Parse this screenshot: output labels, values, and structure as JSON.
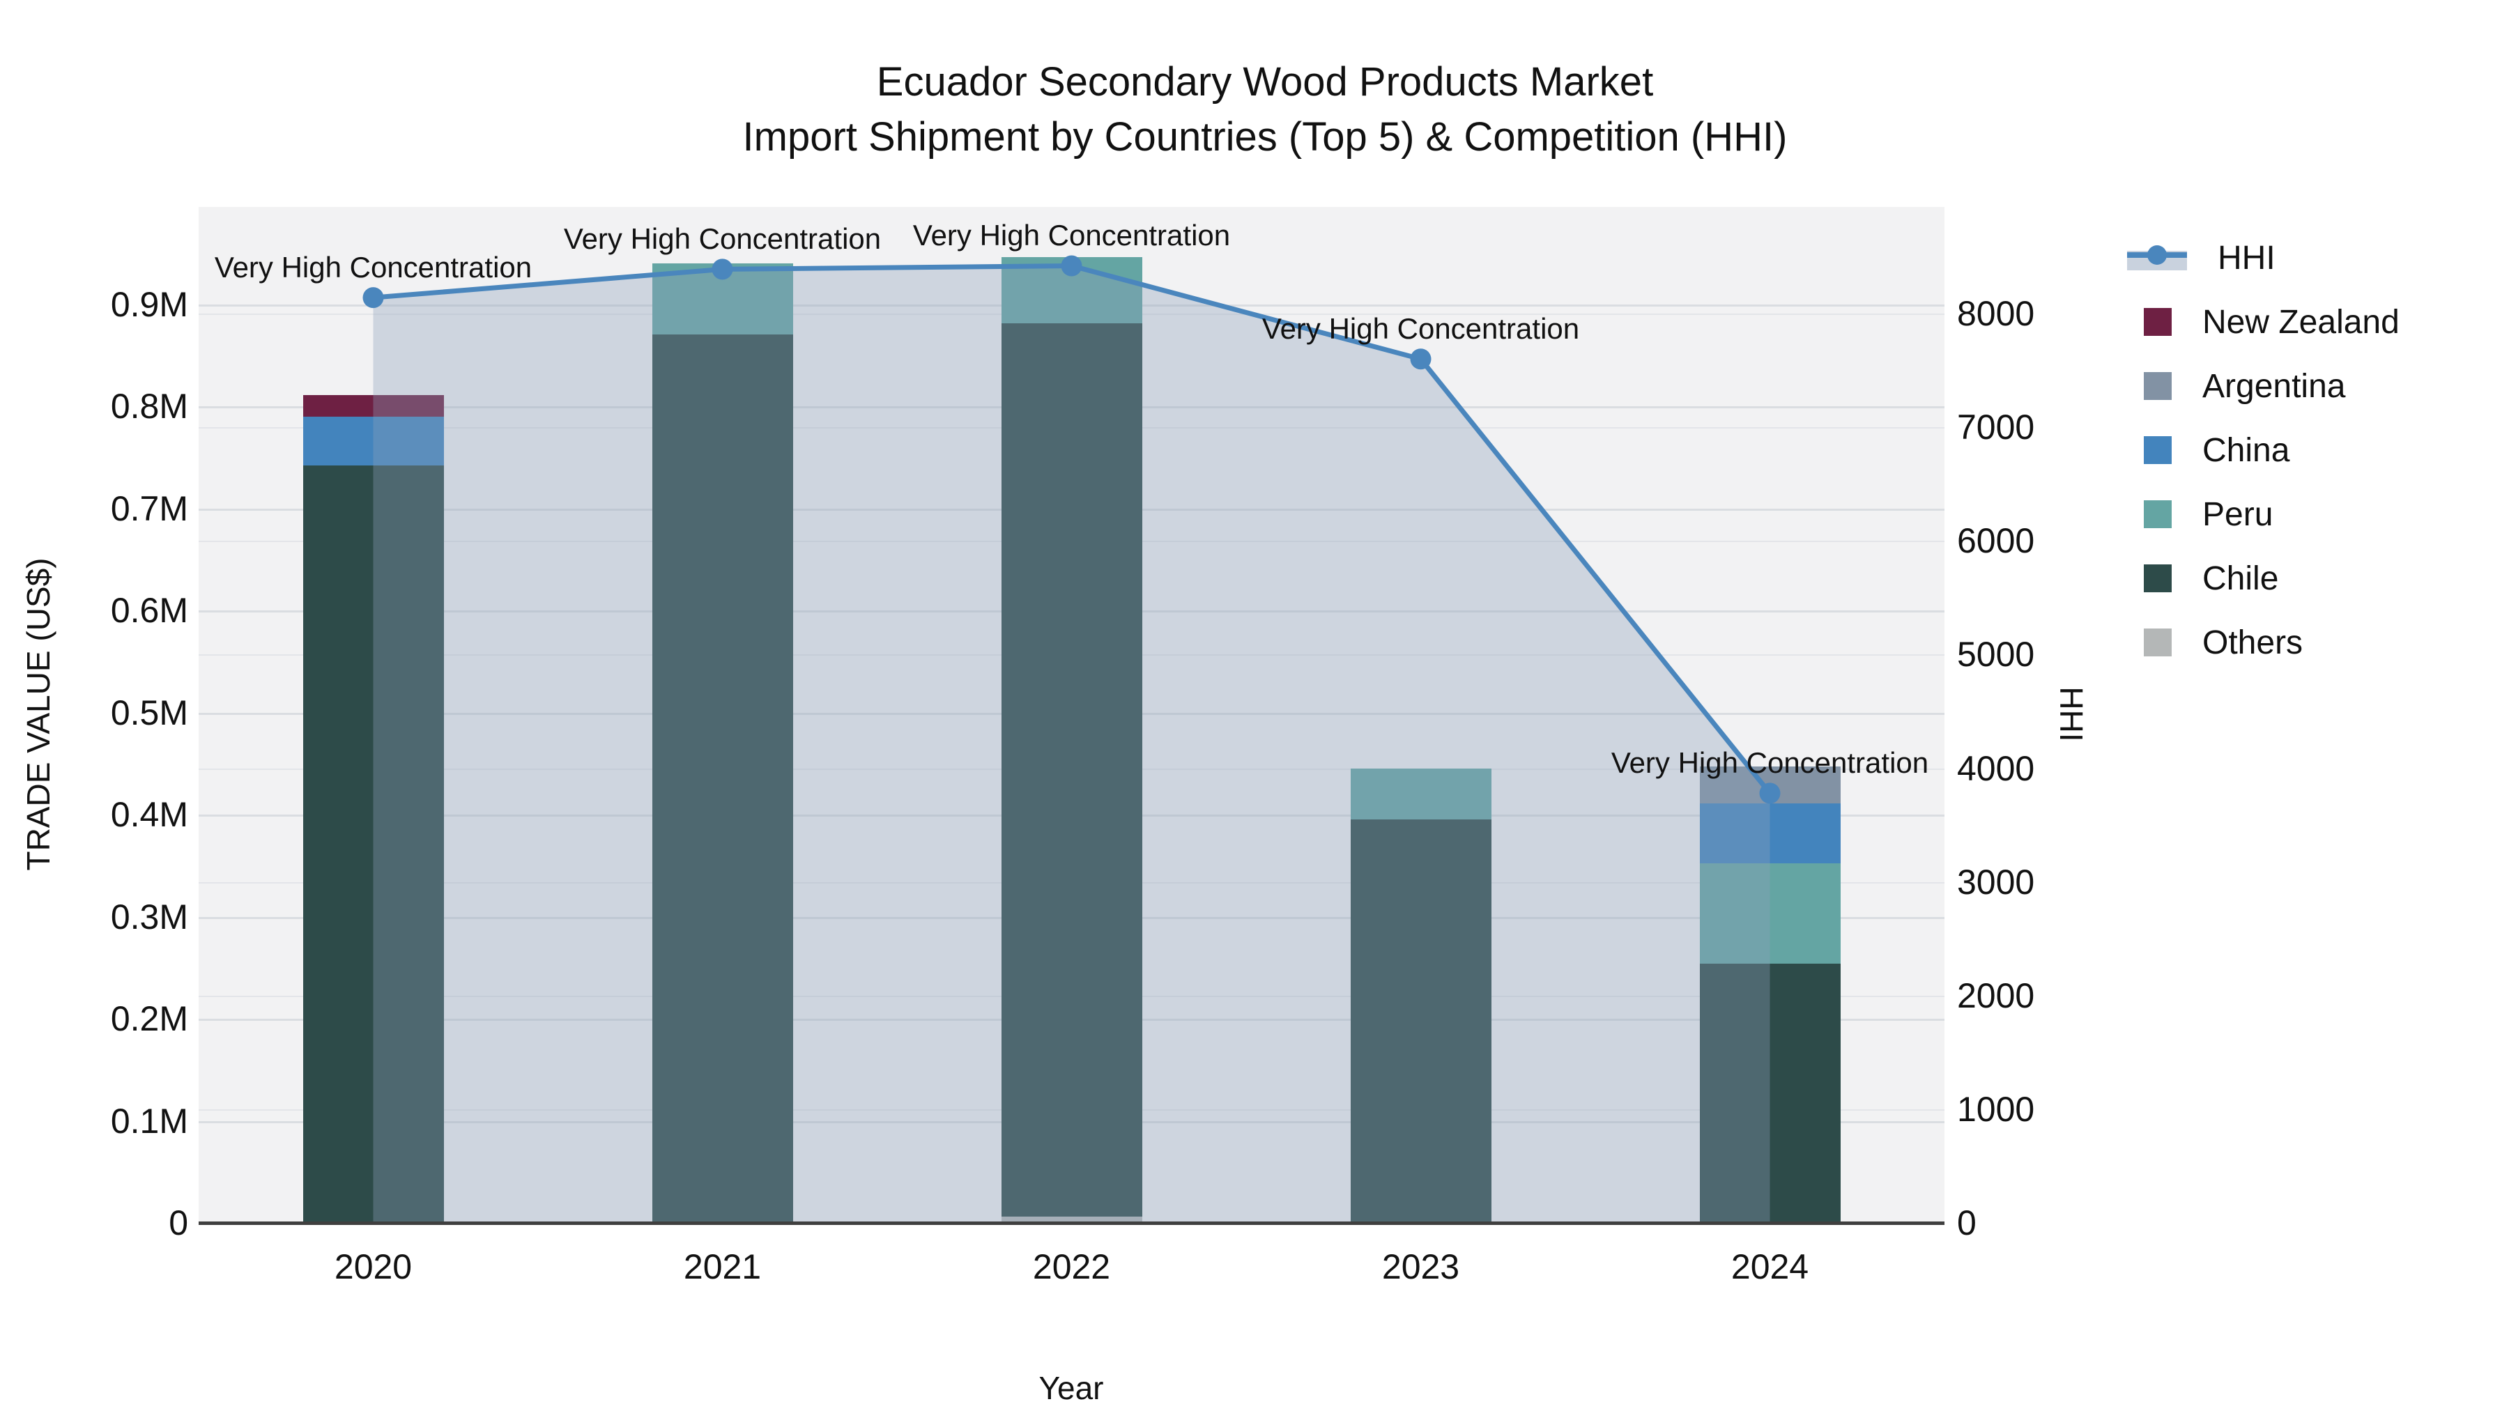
{
  "title": {
    "line1": "Ecuador Secondary Wood Products Market",
    "line2": "Import Shipment by Countries (Top 5) & Competition (HHI)"
  },
  "annotation_text": "Very High Concentration",
  "x_axis": {
    "label": "Year",
    "ticks": [
      "2020",
      "2021",
      "2022",
      "2023",
      "2024"
    ]
  },
  "left_axis": {
    "label": "TRADE VALUE (US$)",
    "ticks": [
      "0",
      "0.1M",
      "0.2M",
      "0.3M",
      "0.4M",
      "0.5M",
      "0.6M",
      "0.7M",
      "0.8M",
      "0.9M"
    ],
    "tick_values": [
      0,
      100000,
      200000,
      300000,
      400000,
      500000,
      600000,
      700000,
      800000,
      900000
    ]
  },
  "right_axis": {
    "label": "HHI",
    "ticks": [
      "0",
      "1000",
      "2000",
      "3000",
      "4000",
      "5000",
      "6000",
      "7000",
      "8000"
    ],
    "tick_values": [
      0,
      1000,
      2000,
      3000,
      4000,
      5000,
      6000,
      7000,
      8000
    ]
  },
  "legend": [
    {
      "label": "HHI",
      "type": "line",
      "color": "#4a86bd"
    },
    {
      "label": "New Zealand",
      "type": "bar",
      "color": "#6e2043"
    },
    {
      "label": "Argentina",
      "type": "bar",
      "color": "#8292a4"
    },
    {
      "label": "China",
      "type": "bar",
      "color": "#4384bd"
    },
    {
      "label": "Peru",
      "type": "bar",
      "color": "#64a5a3"
    },
    {
      "label": "Chile",
      "type": "bar",
      "color": "#2d4b49"
    },
    {
      "label": "Others",
      "type": "bar",
      "color": "#b4b7b7"
    }
  ],
  "colors": {
    "hhi_line": "#4a86bd",
    "hhi_fill": "rgba(140,160,185,0.35)",
    "plot_bg": "#f2f2f3",
    "grid_left": "#dadde1",
    "grid_right": "#e3e5e9",
    "axis_line": "#3f3f3f",
    "text": "#111111"
  },
  "chart_data": {
    "type": "combo: stacked bar (trade value, left axis) + line with markers (HHI, right axis)",
    "title": "Ecuador Secondary Wood Products Market — Import Shipment by Countries (Top 5) & Competition (HHI)",
    "xlabel": "Year",
    "ylabel_left": "TRADE VALUE (US$)",
    "ylabel_right": "HHI",
    "categories": [
      "2020",
      "2021",
      "2022",
      "2023",
      "2024"
    ],
    "bar_unit": "US$",
    "stack_order_bottom_to_top": [
      "Others",
      "Chile",
      "Peru",
      "China",
      "Argentina",
      "New Zealand"
    ],
    "series": [
      {
        "name": "Others",
        "values": [
          0,
          0,
          6000,
          0,
          0
        ]
      },
      {
        "name": "Chile",
        "values": [
          742000,
          870000,
          875000,
          395000,
          254000
        ]
      },
      {
        "name": "Peru",
        "values": [
          0,
          70000,
          65000,
          50000,
          98000
        ]
      },
      {
        "name": "China",
        "values": [
          48000,
          0,
          0,
          0,
          59000
        ]
      },
      {
        "name": "Argentina",
        "values": [
          0,
          0,
          0,
          0,
          36000
        ]
      },
      {
        "name": "New Zealand",
        "values": [
          21000,
          0,
          0,
          0,
          0
        ]
      }
    ],
    "bar_totals": [
      811000,
      940000,
      946000,
      445000,
      447000
    ],
    "line_series": {
      "name": "HHI",
      "values": [
        8140,
        8390,
        8420,
        7600,
        3780
      ],
      "annotations": [
        "Very High Concentration",
        "Very High Concentration",
        "Very High Concentration",
        "Very High Concentration",
        "Very High Concentration"
      ]
    },
    "left_ylim": [
      0,
      997000
    ],
    "right_ylim": [
      0,
      8940
    ],
    "grid": "both axes, horizontal gridlines",
    "legend_position": "right"
  }
}
